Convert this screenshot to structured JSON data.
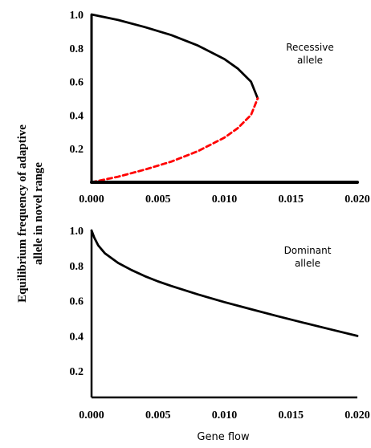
{
  "chart_data": [
    {
      "type": "line",
      "id": "recessive",
      "xlim": [
        0,
        0.02
      ],
      "ylim": [
        0,
        1.0
      ],
      "x_ticks": [
        "0.000",
        "0.005",
        "0.010",
        "0.015",
        "0.020"
      ],
      "y_ticks": [
        "1.0",
        "0.8",
        "0.6",
        "0.4",
        "0.2"
      ],
      "y_tick_values": [
        1.0,
        0.8,
        0.6,
        0.4,
        0.2
      ],
      "x_tick_values": [
        0,
        0.005,
        0.01,
        0.015,
        0.02
      ],
      "annotation": [
        "Recessive",
        "allele"
      ],
      "series": [
        {
          "style": "solid",
          "color": "#000000",
          "points": [
            [
              0.0,
              1.0
            ],
            [
              0.002,
              0.967
            ],
            [
              0.004,
              0.925
            ],
            [
              0.006,
              0.877
            ],
            [
              0.008,
              0.815
            ],
            [
              0.01,
              0.734
            ],
            [
              0.011,
              0.678
            ],
            [
              0.012,
              0.599
            ],
            [
              0.0125,
              0.5
            ]
          ]
        },
        {
          "style": "dashed",
          "color": "#ff0000",
          "points": [
            [
              0.0,
              0.0
            ],
            [
              0.002,
              0.033
            ],
            [
              0.004,
              0.075
            ],
            [
              0.006,
              0.123
            ],
            [
              0.008,
              0.185
            ],
            [
              0.01,
              0.266
            ],
            [
              0.011,
              0.322
            ],
            [
              0.012,
              0.401
            ],
            [
              0.0125,
              0.5
            ]
          ]
        },
        {
          "style": "solid",
          "color": "#000000",
          "points": [
            [
              0.0,
              0.0
            ],
            [
              0.02,
              0.0
            ]
          ]
        }
      ]
    },
    {
      "type": "line",
      "id": "dominant",
      "xlim": [
        0,
        0.02
      ],
      "ylim": [
        0.05,
        1.0
      ],
      "x_ticks": [
        "0.000",
        "0.005",
        "0.010",
        "0.015",
        "0.020"
      ],
      "y_ticks": [
        "1.0",
        "0.8",
        "0.6",
        "0.4",
        "0.2"
      ],
      "y_tick_values": [
        1.0,
        0.8,
        0.6,
        0.4,
        0.2
      ],
      "x_tick_values": [
        0,
        0.005,
        0.01,
        0.015,
        0.02
      ],
      "annotation": [
        "Dominant",
        "allele"
      ],
      "series": [
        {
          "style": "solid",
          "color": "#000000",
          "points": [
            [
              0.0,
              1.0
            ],
            [
              0.0002,
              0.96
            ],
            [
              0.0005,
              0.915
            ],
            [
              0.001,
              0.87
            ],
            [
              0.002,
              0.815
            ],
            [
              0.003,
              0.775
            ],
            [
              0.004,
              0.74
            ],
            [
              0.005,
              0.71
            ],
            [
              0.006,
              0.684
            ],
            [
              0.008,
              0.636
            ],
            [
              0.01,
              0.592
            ],
            [
              0.012,
              0.552
            ],
            [
              0.014,
              0.512
            ],
            [
              0.016,
              0.474
            ],
            [
              0.018,
              0.437
            ],
            [
              0.02,
              0.4
            ]
          ]
        }
      ]
    }
  ],
  "ylabel_line1": "Equilibrium frequency of adaptive",
  "ylabel_line2": "allele in novel range",
  "xlabel": "Gene flow"
}
